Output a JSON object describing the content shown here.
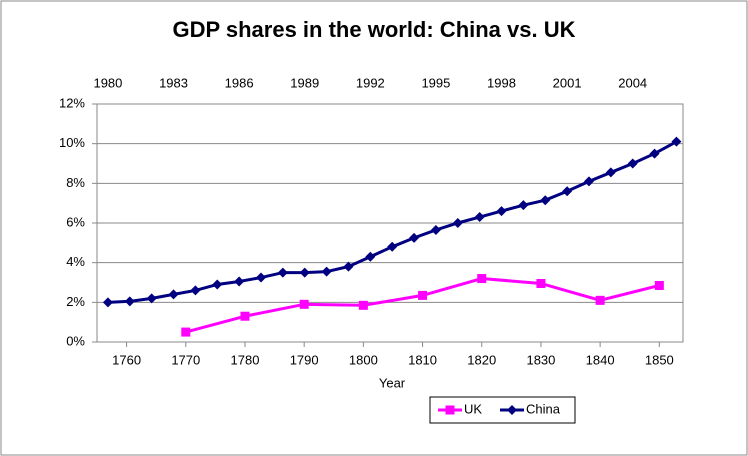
{
  "chart_data": {
    "type": "line",
    "title": "GDP shares in the world: China vs. UK",
    "x_label": "Year",
    "xlim": [
      1755,
      1854
    ],
    "xticks": [
      1760,
      1770,
      1780,
      1790,
      1800,
      1810,
      1820,
      1830,
      1840,
      1850
    ],
    "x2lim": [
      1979.5,
      2006.3
    ],
    "x2ticks": [
      1980,
      1983,
      1986,
      1989,
      1992,
      1995,
      1998,
      2001,
      2004
    ],
    "ylim": [
      0,
      12
    ],
    "yticks": [
      {
        "value": 0,
        "label": "0%"
      },
      {
        "value": 2,
        "label": "2%"
      },
      {
        "value": 4,
        "label": "4%"
      },
      {
        "value": 6,
        "label": "6%"
      },
      {
        "value": 8,
        "label": "8%"
      },
      {
        "value": 10,
        "label": "10%"
      },
      {
        "value": 12,
        "label": "12%"
      }
    ],
    "grid": true,
    "legend": "bottom",
    "series": [
      {
        "name": "UK",
        "color": "#ff00ff",
        "x": [
          1770,
          1780,
          1790,
          1800,
          1810,
          1820,
          1830,
          1840,
          1850
        ],
        "values": [
          0.5,
          1.3,
          1.9,
          1.85,
          2.35,
          3.2,
          2.95,
          2.1,
          2.85
        ]
      },
      {
        "name": "China",
        "color": "#000080",
        "axis": "x2",
        "x": [
          1980,
          1981,
          1982,
          1983,
          1984,
          1985,
          1986,
          1987,
          1988,
          1989,
          1990,
          1991,
          1992,
          1993,
          1994,
          1995,
          1996,
          1997,
          1998,
          1999,
          2000,
          2001,
          2002,
          2003,
          2004,
          2005,
          2006
        ],
        "values": [
          2.0,
          2.05,
          2.2,
          2.4,
          2.6,
          2.9,
          3.05,
          3.25,
          3.5,
          3.5,
          3.55,
          3.8,
          4.3,
          4.8,
          5.25,
          5.65,
          6.0,
          6.3,
          6.6,
          6.9,
          7.15,
          7.6,
          8.1,
          8.55,
          9.0,
          9.5,
          10.1
        ]
      }
    ]
  }
}
